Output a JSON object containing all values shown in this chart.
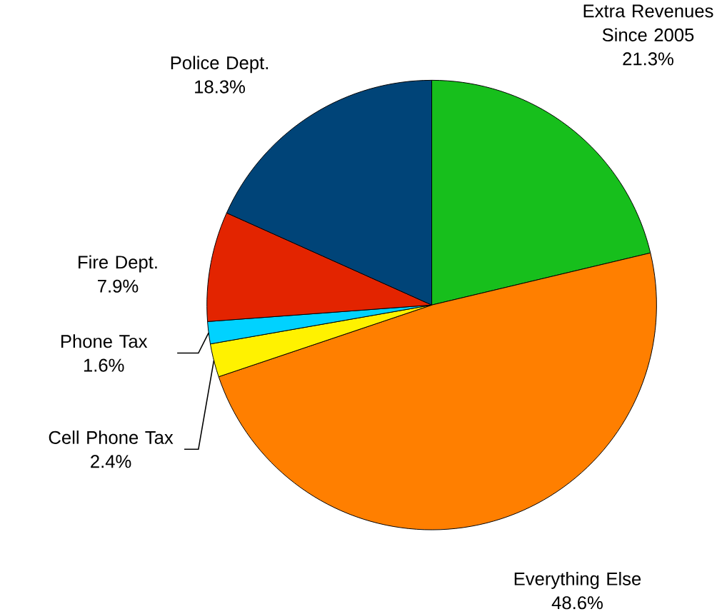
{
  "chart_data": {
    "type": "pie",
    "categories": [
      "Extra Revenues Since 2005",
      "Everything Else",
      "Cell Phone Tax",
      "Phone Tax",
      "Fire Dept.",
      "Police Dept."
    ],
    "values": [
      21.3,
      48.6,
      2.4,
      1.6,
      7.9,
      18.3
    ],
    "value_labels": [
      "21.3%",
      "48.6%",
      "2.4%",
      "1.6%",
      "7.9%",
      "18.3%"
    ],
    "colors": [
      "#17bf1c",
      "#ff7f00",
      "#fff200",
      "#00d2ff",
      "#e32400",
      "#004478"
    ]
  }
}
